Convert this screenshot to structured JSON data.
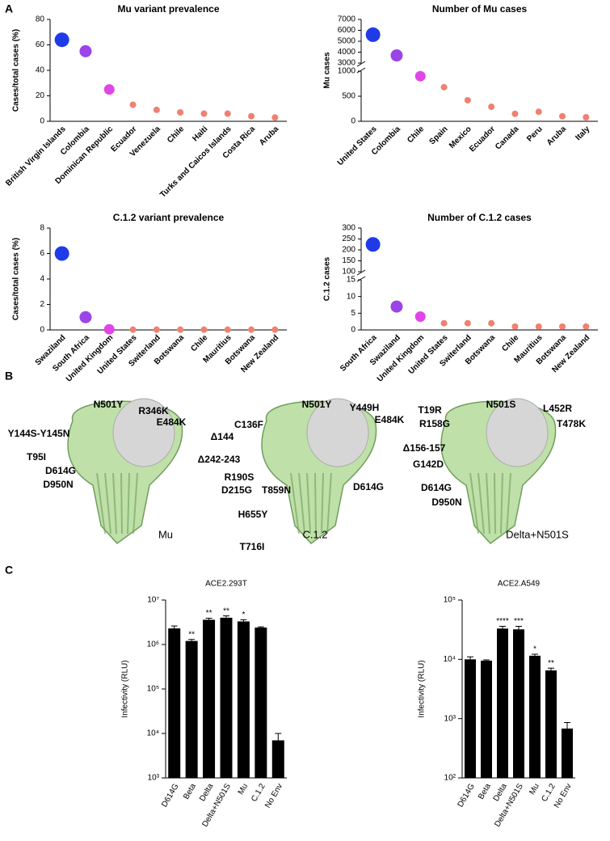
{
  "panels": [
    "A",
    "B",
    "C"
  ],
  "chart_data": [
    {
      "type": "dot",
      "title": "Mu variant prevalence",
      "ylabel": "Cases/total  cases (%)",
      "categories": [
        "British Virgin Islands",
        "Colombia",
        "Dominican Republic",
        "Ecuador",
        "Venezuela",
        "Chile",
        "Haiti",
        "Turks and Caicos Islands",
        "Costa Rica",
        "Aruba"
      ],
      "values": [
        64,
        55,
        25,
        13,
        9,
        7,
        6,
        6,
        4,
        3
      ],
      "colors": [
        "#1f3be8",
        "#9b44e8",
        "#e045e8",
        "#f08070",
        "#f08070",
        "#f08070",
        "#f08070",
        "#f08070",
        "#f08070",
        "#f08070"
      ],
      "ylim": [
        0,
        80
      ],
      "yticks": [
        0,
        20,
        40,
        60,
        80
      ]
    },
    {
      "type": "dot",
      "title": "Number of Mu cases",
      "ylabel": "Mu cases",
      "categories": [
        "United States",
        "Colombia",
        "Chile",
        "Spain",
        "Mexico",
        "Ecuador",
        "Canada",
        "Peru",
        "Aruba",
        "Italy"
      ],
      "values": [
        5600,
        3700,
        900,
        680,
        420,
        290,
        150,
        190,
        100,
        80
      ],
      "colors": [
        "#1f3be8",
        "#9b44e8",
        "#e045e8",
        "#f08070",
        "#f08070",
        "#f08070",
        "#f08070",
        "#f08070",
        "#f08070",
        "#f08070"
      ],
      "segments": [
        {
          "ylim": [
            0,
            1000
          ],
          "yticks": [
            0,
            500,
            1000
          ]
        },
        {
          "ylim": [
            3000,
            7000
          ],
          "yticks": [
            3000,
            4000,
            5000,
            6000,
            7000
          ]
        }
      ]
    },
    {
      "type": "dot",
      "title": "C.1.2 variant prevalence",
      "ylabel": "Cases/total  cases (%)",
      "categories": [
        "Swaziland",
        "South Africa",
        "United Kingdom",
        "United States",
        "Switerland",
        "Botswana",
        "Chile",
        "Mauritius",
        "Botswana",
        "New Zealand"
      ],
      "values": [
        6,
        1,
        0.05,
        0.02,
        0.02,
        0.02,
        0.02,
        0.02,
        0.02,
        0.02
      ],
      "colors": [
        "#1f3be8",
        "#9b44e8",
        "#e045e8",
        "#f08070",
        "#f08070",
        "#f08070",
        "#f08070",
        "#f08070",
        "#f08070",
        "#f08070"
      ],
      "ylim": [
        0,
        8
      ],
      "yticks": [
        0,
        2,
        4,
        6,
        8
      ]
    },
    {
      "type": "dot",
      "title": "Number of C.1.2 cases",
      "ylabel": "C.1.2 cases",
      "categories": [
        "South Africa",
        "Swaziland",
        "United Kingdom",
        "United States",
        "Switerland",
        "Botswana",
        "Chile",
        "Mauritius",
        "Botswana",
        "New Zealand"
      ],
      "values": [
        225,
        7,
        4,
        2,
        2,
        2,
        1,
        1,
        1,
        1
      ],
      "colors": [
        "#1f3be8",
        "#9b44e8",
        "#e045e8",
        "#f08070",
        "#f08070",
        "#f08070",
        "#f08070",
        "#f08070",
        "#f08070",
        "#f08070"
      ],
      "segments": [
        {
          "ylim": [
            0,
            15
          ],
          "yticks": [
            0,
            5,
            10,
            15
          ]
        },
        {
          "ylim": [
            100,
            300
          ],
          "yticks": [
            100,
            150,
            200,
            250,
            300
          ]
        }
      ]
    },
    {
      "type": "bar",
      "title": "ACE2.293T",
      "ylabel": "Infectivity (RLU)",
      "log": true,
      "color": "#000000",
      "categories": [
        "D614G",
        "Beta",
        "Delta",
        "Delta+N501S",
        "Mu",
        "C.1.2",
        "No Env"
      ],
      "values": [
        2300000,
        1200000,
        3600000,
        4000000,
        3300000,
        2400000,
        7000
      ],
      "errors": [
        300000,
        100000,
        300000,
        400000,
        300000,
        100000,
        3000
      ],
      "significance": [
        null,
        "**",
        "**",
        "**",
        "*",
        null,
        null
      ],
      "ylim": [
        1000,
        10000000
      ],
      "yticks": [
        {
          "value": 1000,
          "label": "10³"
        },
        {
          "value": 10000,
          "label": "10⁴"
        },
        {
          "value": 100000,
          "label": "10⁵"
        },
        {
          "value": 1000000,
          "label": "10⁶"
        },
        {
          "value": 10000000,
          "label": "10⁷"
        }
      ]
    },
    {
      "type": "bar",
      "title": "ACE2.A549",
      "ylabel": "Infectivity (RLU)",
      "log": true,
      "color": "#000000",
      "categories": [
        "D614G",
        "Beta",
        "Delta",
        "Delta+N501S",
        "Mu",
        "C.1.2",
        "No Env"
      ],
      "values": [
        10000,
        9500,
        33000,
        32000,
        11500,
        6500,
        680
      ],
      "errors": [
        1000,
        300,
        3000,
        4000,
        700,
        600,
        180
      ],
      "significance": [
        null,
        null,
        "****",
        "***",
        "*",
        "**",
        null
      ],
      "ylim": [
        100,
        100000
      ],
      "yticks": [
        {
          "value": 100,
          "label": "10²"
        },
        {
          "value": 1000,
          "label": "10³"
        },
        {
          "value": 10000,
          "label": "10⁴"
        },
        {
          "value": 100000,
          "label": "10⁵"
        }
      ]
    }
  ],
  "structures": [
    {
      "name": "Mu",
      "mutations": [
        {
          "label": "N501Y",
          "color": "#7030a0"
        },
        {
          "label": "R346K",
          "color": "#3355dd"
        },
        {
          "label": "E484K",
          "color": "#e040c8"
        },
        {
          "label": "Y144S-Y145N",
          "color": "#c8a020"
        },
        {
          "label": "T95I",
          "color": "#7fd020"
        },
        {
          "label": "D614G",
          "color": "#e01010"
        },
        {
          "label": "D950N",
          "color": "#80c8f0"
        }
      ]
    },
    {
      "name": "C.1.2",
      "mutations": [
        {
          "label": "N501Y",
          "color": "#7030a0"
        },
        {
          "label": "Y449H",
          "color": "#3355dd"
        },
        {
          "label": "E484K",
          "color": "#e040c8"
        },
        {
          "label": "C136F",
          "color": "#e07820"
        },
        {
          "label": "Δ144",
          "color": "#e07820"
        },
        {
          "label": "Δ242-243",
          "color": "#3355dd"
        },
        {
          "label": "R190S",
          "color": "#c0104a"
        },
        {
          "label": "D215G",
          "color": "#7fd020"
        },
        {
          "label": "T859N",
          "color": "#e01010"
        },
        {
          "label": "D614G",
          "color": "#e01010"
        },
        {
          "label": "H655Y",
          "color": "#c8a020"
        },
        {
          "label": "T716I",
          "color": "#3355dd"
        }
      ]
    },
    {
      "name": "Delta+N501S",
      "mutations": [
        {
          "label": "N501S",
          "color": "#7030a0"
        },
        {
          "label": "L452R",
          "color": "#3355dd"
        },
        {
          "label": "T19R",
          "color": "#c8a020"
        },
        {
          "label": "R158G",
          "color": "#c0104a"
        },
        {
          "label": "T478K",
          "color": "#e040c8"
        },
        {
          "label": "Δ156-157",
          "color": "#80c8f0"
        },
        {
          "label": "G142D",
          "color": "#7fd020"
        },
        {
          "label": "D614G",
          "color": "#e01010"
        },
        {
          "label": "D950N",
          "color": "#80c8f0"
        }
      ]
    }
  ]
}
